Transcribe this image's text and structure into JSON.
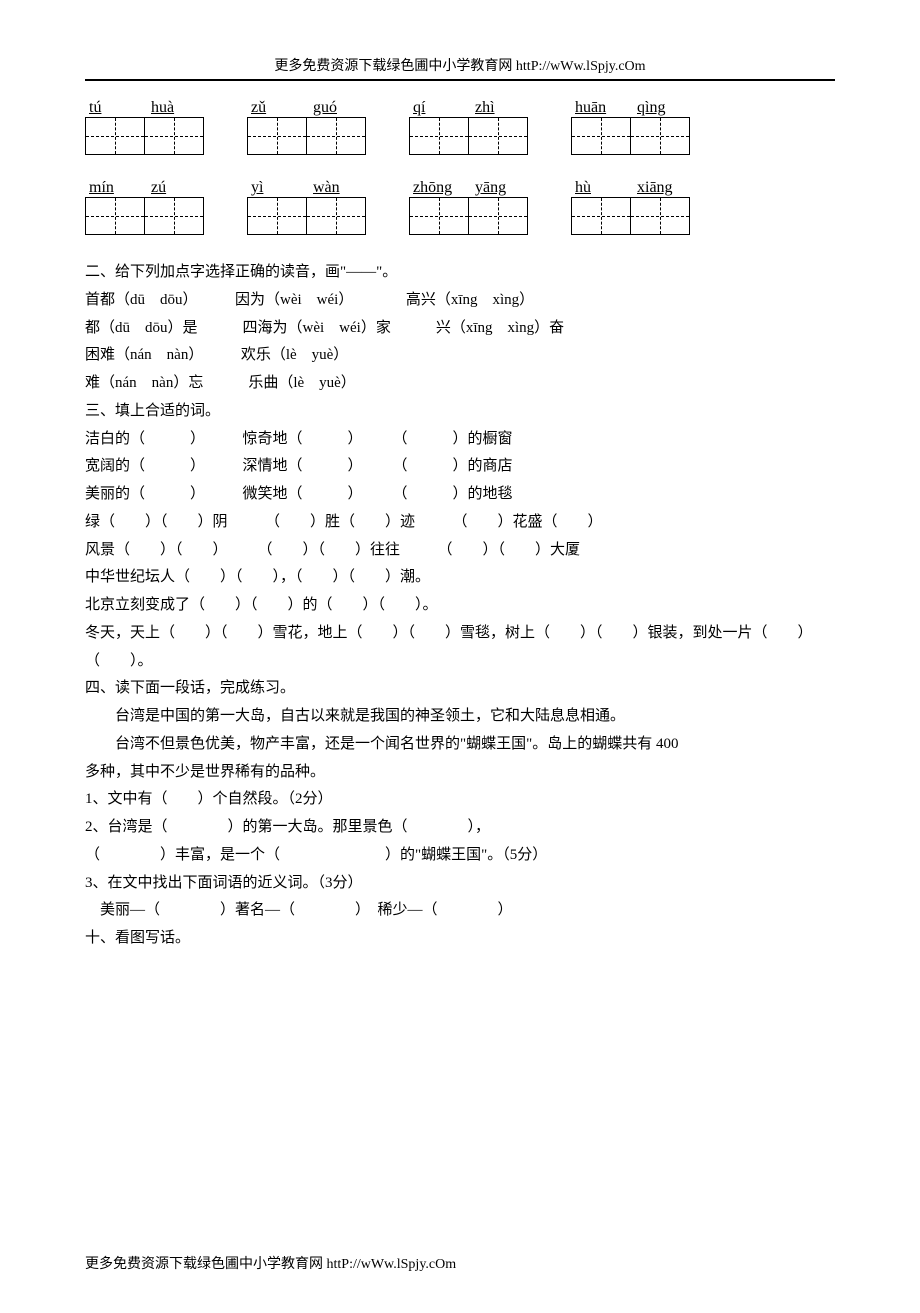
{
  "header": "更多免费资源下载绿色圃中小学教育网 httP://wWw.lSpjy.cOm",
  "footer": "更多免费资源下载绿色圃中小学教育网 httP://wWw.lSpjy.cOm",
  "pinyin_rows": [
    [
      {
        "syl": [
          "tú",
          "huà"
        ]
      },
      {
        "syl": [
          "zǔ",
          "guó"
        ]
      },
      {
        "syl": [
          "qí",
          "zhì"
        ]
      },
      {
        "syl": [
          "huān",
          "qìng"
        ]
      }
    ],
    [
      {
        "syl": [
          "mín",
          "zú"
        ]
      },
      {
        "syl": [
          "yì",
          "wàn"
        ]
      },
      {
        "syl": [
          "zhōng",
          "yāng"
        ]
      },
      {
        "syl": [
          "hù",
          "xiāng"
        ]
      }
    ]
  ],
  "section2": {
    "title": "二、给下列加点字选择正确的读音，画\"——\"。",
    "line1": "首都（dū　dōu）　　　因为（wèi　wéi）　　　　高兴（xīng　xìng）",
    "line2": "都（dū　dōu）是　　　四海为（wèi　wéi）家　　　兴（xīng　xìng）奋",
    "line3": "困难（nán　nàn）　　　欢乐（lè　yuè）",
    "line4": "难（nán　nàn）忘　　　乐曲（lè　yuè）"
  },
  "section3": {
    "title": "三、填上合适的词。",
    "line1": "洁白的（　　　）　　　惊奇地（　　　）　　　（　　　）的橱窗",
    "line2": "宽阔的（　　　）　　　深情地（　　　）　　　（　　　）的商店",
    "line3": "美丽的（　　　）　　　微笑地（　　　）　　　（　　　）的地毯",
    "line4": "绿（　　）（　　）阴　　　（　　）胜（　　）迹　　　（　　）花盛（　　）",
    "line5": "风景（　　）（　　）　　　（　　）（　　）往往　　　（　　）（　　）大厦",
    "line6": "中华世纪坛人（　　）（　　），（　　）（　　）潮。",
    "line7": "北京立刻变成了（　　）（　　）的（　　）（　　）。",
    "line8": "冬天，天上（　　）（　　）雪花，地上（　　）（　　）雪毯，树上（　　）（　　）银装，到处一片（　　）",
    "line9": "（　　）。"
  },
  "section4": {
    "title": "四、读下面一段话，完成练习。",
    "p1": "台湾是中国的第一大岛，自古以来就是我国的神圣领土，它和大陆息息相通。",
    "p2": "台湾不但景色优美，物产丰富，还是一个闻名世界的\"蝴蝶王国\"。岛上的蝴蝶共有 400",
    "p2b": "多种，其中不少是世界稀有的品种。",
    "q1": "1、文中有（　　）个自然段。（2分）",
    "q2": "2、台湾是（　　　　）的第一大岛。那里景色（　　　　），",
    "q2b": "（　　　　）丰富，是一个（　　　　　　　）的\"蝴蝶王国\"。（5分）",
    "q3": "3、在文中找出下面词语的近义词。（3分）",
    "q3b": "　美丽—（　　　　）著名—（　　　　）　稀少—（　　　　）"
  },
  "section10": "十、看图写话。"
}
